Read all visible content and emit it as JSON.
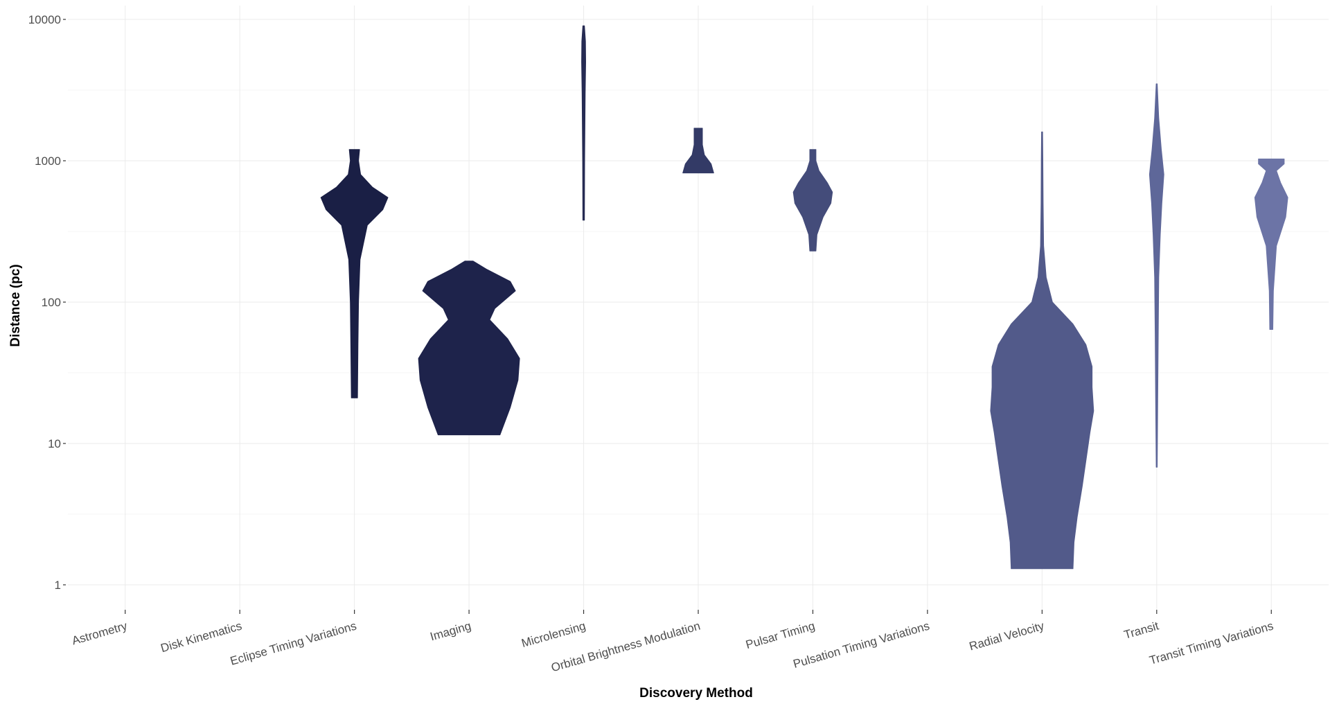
{
  "chart_data": {
    "type": "violin",
    "xlabel": "Discovery Method",
    "ylabel": "Distance (pc)",
    "y_scale": "log10",
    "ylim": [
      0.45,
      11500
    ],
    "yticks": [
      1,
      10,
      100,
      1000,
      10000
    ],
    "ytick_labels": [
      "1",
      "10",
      "100",
      "1000",
      "10000"
    ],
    "grid": true,
    "categories": [
      "Astrometry",
      "Disk Kinematics",
      "Eclipse Timing Variations",
      "Imaging",
      "Microlensing",
      "Orbital Brightness Modulation",
      "Pulsar Timing",
      "Pulsation Timing Variations",
      "Radial Velocity",
      "Transit",
      "Transit Timing Variations"
    ],
    "violins": [
      {
        "category": "Eclipse Timing Variations",
        "color": "#1a1f45",
        "min": 21,
        "max": 1200,
        "profile": [
          [
            21,
            0.06
          ],
          [
            50,
            0.07
          ],
          [
            100,
            0.08
          ],
          [
            200,
            0.11
          ],
          [
            350,
            0.25
          ],
          [
            450,
            0.55
          ],
          [
            550,
            0.65
          ],
          [
            650,
            0.35
          ],
          [
            800,
            0.12
          ],
          [
            1000,
            0.08
          ],
          [
            1200,
            0.1
          ]
        ]
      },
      {
        "category": "Imaging",
        "color": "#1e234b",
        "min": 11.5,
        "max": 195,
        "profile": [
          [
            11.5,
            0.6
          ],
          [
            18,
            0.8
          ],
          [
            28,
            0.95
          ],
          [
            40,
            0.98
          ],
          [
            55,
            0.75
          ],
          [
            75,
            0.4
          ],
          [
            90,
            0.5
          ],
          [
            120,
            0.9
          ],
          [
            140,
            0.8
          ],
          [
            170,
            0.35
          ],
          [
            195,
            0.08
          ]
        ]
      },
      {
        "category": "Microlensing",
        "color": "#262b53",
        "min": 380,
        "max": 9000,
        "profile": [
          [
            380,
            0.015
          ],
          [
            1000,
            0.02
          ],
          [
            3000,
            0.03
          ],
          [
            5000,
            0.04
          ],
          [
            7000,
            0.035
          ],
          [
            9000,
            0.015
          ]
        ]
      },
      {
        "category": "Orbital Brightness Modulation",
        "color": "#333a66",
        "min": 820,
        "max": 1700,
        "profile": [
          [
            820,
            0.3
          ],
          [
            950,
            0.25
          ],
          [
            1100,
            0.12
          ],
          [
            1300,
            0.08
          ],
          [
            1500,
            0.08
          ],
          [
            1700,
            0.08
          ]
        ]
      },
      {
        "category": "Pulsar Timing",
        "color": "#444c7a",
        "min": 230,
        "max": 1200,
        "profile": [
          [
            230,
            0.06
          ],
          [
            300,
            0.08
          ],
          [
            400,
            0.2
          ],
          [
            500,
            0.35
          ],
          [
            600,
            0.38
          ],
          [
            700,
            0.28
          ],
          [
            850,
            0.12
          ],
          [
            1000,
            0.06
          ],
          [
            1200,
            0.06
          ]
        ]
      },
      {
        "category": "Radial Velocity",
        "color": "#525a8a",
        "min": 1.3,
        "max": 1600,
        "profile": [
          [
            1.3,
            0.6
          ],
          [
            2,
            0.62
          ],
          [
            3,
            0.68
          ],
          [
            5,
            0.78
          ],
          [
            8,
            0.86
          ],
          [
            12,
            0.93
          ],
          [
            17,
            1.0
          ],
          [
            25,
            0.97
          ],
          [
            35,
            0.97
          ],
          [
            50,
            0.85
          ],
          [
            70,
            0.6
          ],
          [
            100,
            0.2
          ],
          [
            150,
            0.08
          ],
          [
            250,
            0.03
          ],
          [
            500,
            0.02
          ],
          [
            1000,
            0.015
          ],
          [
            1600,
            0.01
          ]
        ]
      },
      {
        "category": "Transit",
        "color": "#5e6799",
        "min": 6.8,
        "max": 3500,
        "profile": [
          [
            6.8,
            0.01
          ],
          [
            20,
            0.02
          ],
          [
            60,
            0.03
          ],
          [
            150,
            0.04
          ],
          [
            300,
            0.07
          ],
          [
            500,
            0.1
          ],
          [
            800,
            0.14
          ],
          [
            1200,
            0.09
          ],
          [
            2000,
            0.04
          ],
          [
            3500,
            0.01
          ]
        ]
      },
      {
        "category": "Transit Timing Variations",
        "color": "#6c74a6",
        "min": 64,
        "max": 1030,
        "profile": [
          [
            64,
            0.03
          ],
          [
            120,
            0.04
          ],
          [
            250,
            0.1
          ],
          [
            400,
            0.28
          ],
          [
            550,
            0.32
          ],
          [
            700,
            0.18
          ],
          [
            850,
            0.1
          ],
          [
            950,
            0.25
          ],
          [
            1030,
            0.25
          ]
        ]
      }
    ]
  }
}
